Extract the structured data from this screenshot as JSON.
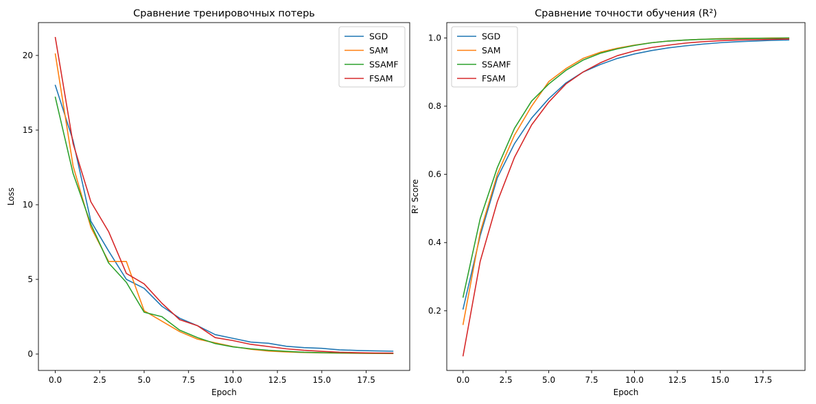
{
  "chart_data": [
    {
      "type": "line",
      "title": "Сравнение тренировочных потерь",
      "xlabel": "Epoch",
      "ylabel": "Loss",
      "xlim": [
        -0.95,
        19.95
      ],
      "ylim": [
        -1.1,
        22.2
      ],
      "xticks": [
        0.0,
        2.5,
        5.0,
        7.5,
        10.0,
        12.5,
        15.0,
        17.5
      ],
      "xtick_labels": [
        "0.0",
        "2.5",
        "5.0",
        "7.5",
        "10.0",
        "12.5",
        "15.0",
        "17.5"
      ],
      "yticks": [
        0,
        5,
        10,
        15,
        20
      ],
      "ytick_labels": [
        "0",
        "5",
        "10",
        "15",
        "20"
      ],
      "legend_position": "top-right",
      "x": [
        0,
        1,
        2,
        3,
        4,
        5,
        6,
        7,
        8,
        9,
        10,
        11,
        12,
        13,
        14,
        15,
        16,
        17,
        18,
        19
      ],
      "series": [
        {
          "name": "SGD",
          "color": "#1f77b4",
          "values": [
            18.0,
            14.3,
            8.9,
            6.9,
            5.0,
            4.4,
            3.2,
            2.4,
            1.9,
            1.3,
            1.05,
            0.8,
            0.72,
            0.52,
            0.43,
            0.38,
            0.28,
            0.24,
            0.21,
            0.19
          ]
        },
        {
          "name": "SAM",
          "color": "#ff7f0e",
          "values": [
            20.1,
            12.6,
            8.5,
            6.2,
            6.2,
            2.9,
            2.2,
            1.5,
            1.0,
            0.75,
            0.5,
            0.32,
            0.2,
            0.14,
            0.1,
            0.08,
            0.06,
            0.05,
            0.04,
            0.03
          ]
        },
        {
          "name": "SSAMF",
          "color": "#2ca02c",
          "values": [
            17.2,
            12.1,
            8.7,
            6.1,
            4.8,
            2.8,
            2.5,
            1.6,
            1.1,
            0.7,
            0.48,
            0.35,
            0.25,
            0.18,
            0.12,
            0.09,
            0.07,
            0.06,
            0.05,
            0.04
          ]
        },
        {
          "name": "FSAM",
          "color": "#d62728",
          "values": [
            21.2,
            14.1,
            10.2,
            8.2,
            5.4,
            4.7,
            3.4,
            2.3,
            1.9,
            1.1,
            0.9,
            0.65,
            0.5,
            0.35,
            0.25,
            0.18,
            0.12,
            0.09,
            0.07,
            0.06
          ]
        }
      ]
    },
    {
      "type": "line",
      "title": "Сравнение точности обучения (R²)",
      "xlabel": "Epoch",
      "ylabel": "R² Score",
      "xlim": [
        -0.95,
        19.95
      ],
      "ylim": [
        0.025,
        1.045
      ],
      "xticks": [
        0.0,
        2.5,
        5.0,
        7.5,
        10.0,
        12.5,
        15.0,
        17.5
      ],
      "xtick_labels": [
        "0.0",
        "2.5",
        "5.0",
        "7.5",
        "10.0",
        "12.5",
        "15.0",
        "17.5"
      ],
      "yticks": [
        0.2,
        0.4,
        0.6,
        0.8,
        1.0
      ],
      "ytick_labels": [
        "0.2",
        "0.4",
        "0.6",
        "0.8",
        "1.0"
      ],
      "legend_position": "top-left",
      "x": [
        0,
        1,
        2,
        3,
        4,
        5,
        6,
        7,
        8,
        9,
        10,
        11,
        12,
        13,
        14,
        15,
        16,
        17,
        18,
        19
      ],
      "series": [
        {
          "name": "SGD",
          "color": "#1f77b4",
          "values": [
            0.205,
            0.42,
            0.59,
            0.69,
            0.765,
            0.822,
            0.868,
            0.9,
            0.922,
            0.94,
            0.953,
            0.963,
            0.971,
            0.977,
            0.982,
            0.986,
            0.989,
            0.991,
            0.993,
            0.994
          ]
        },
        {
          "name": "SAM",
          "color": "#ff7f0e",
          "values": [
            0.16,
            0.43,
            0.6,
            0.715,
            0.8,
            0.872,
            0.91,
            0.94,
            0.958,
            0.97,
            0.979,
            0.986,
            0.991,
            0.994,
            0.996,
            0.998,
            0.999,
            0.999,
            1.0,
            1.0
          ]
        },
        {
          "name": "SSAMF",
          "color": "#2ca02c",
          "values": [
            0.24,
            0.47,
            0.62,
            0.735,
            0.815,
            0.865,
            0.905,
            0.935,
            0.955,
            0.968,
            0.978,
            0.986,
            0.991,
            0.994,
            0.996,
            0.997,
            0.998,
            0.999,
            0.999,
            1.0
          ]
        },
        {
          "name": "FSAM",
          "color": "#d62728",
          "values": [
            0.068,
            0.345,
            0.52,
            0.65,
            0.745,
            0.812,
            0.865,
            0.9,
            0.927,
            0.948,
            0.962,
            0.972,
            0.979,
            0.985,
            0.989,
            0.992,
            0.994,
            0.995,
            0.996,
            0.997
          ]
        }
      ]
    }
  ]
}
